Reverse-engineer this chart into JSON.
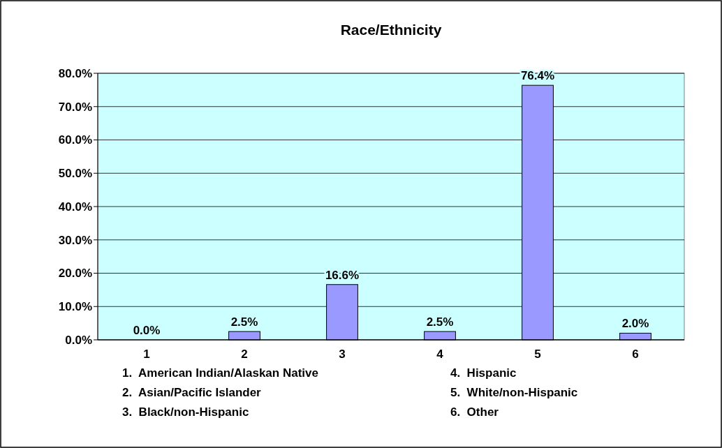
{
  "chart_data": {
    "type": "bar",
    "title": "Race/Ethnicity",
    "categories": [
      "1",
      "2",
      "3",
      "4",
      "5",
      "6"
    ],
    "values": [
      0.0,
      2.5,
      16.6,
      2.5,
      76.4,
      2.0
    ],
    "value_labels": [
      "0.0%",
      "2.5%",
      "16.6%",
      "2.5%",
      "76.4%",
      "2.0%"
    ],
    "color": "#9999ff",
    "ylim": [
      0,
      80
    ],
    "yticks": [
      {
        "value": 0,
        "label": "0.0%"
      },
      {
        "value": 10,
        "label": "10.0%"
      },
      {
        "value": 20,
        "label": "20.0%"
      },
      {
        "value": 30,
        "label": "30.0%"
      },
      {
        "value": 40,
        "label": "40.0%"
      },
      {
        "value": 50,
        "label": "50.0%"
      },
      {
        "value": 60,
        "label": "60.0%"
      },
      {
        "value": 70,
        "label": "70.0%"
      },
      {
        "value": 80,
        "label": "80.0%"
      }
    ],
    "grid": "y",
    "annotations": [
      "1.  American Indian/Alaskan Native",
      "2.  Asian/Pacific Islander",
      "3.  Black/non-Hispanic",
      "4.  Hispanic",
      "5.  White/non-Hispanic",
      "6.  Other"
    ]
  }
}
